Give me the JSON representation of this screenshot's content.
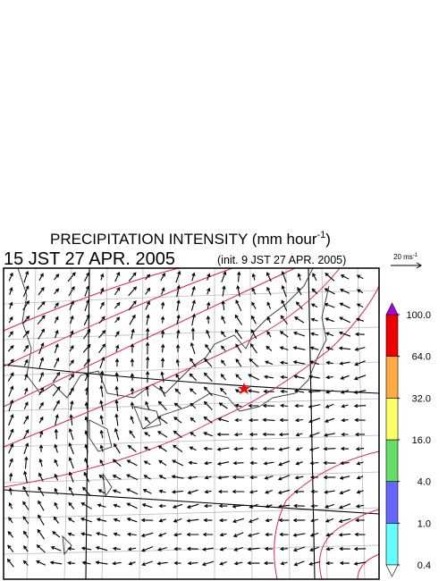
{
  "header": {
    "title": "PRECIPITATION INTENSITY (mm hour",
    "title_sup": "-1",
    "title_end": ")",
    "valid_time": "15 JST 27 APR. 2005",
    "init_time": "(init. 9 JST 27 APR. 2005)"
  },
  "vector_key": {
    "label": "20 ms",
    "sup": "-1"
  },
  "colorbar": {
    "levels": [
      0.4,
      {
        "value": 1,
        "label": "1.0"
      },
      {
        "value": 4,
        "label": "4.0"
      },
      {
        "value": 16,
        "label": "16.0"
      },
      {
        "value": 32,
        "label": "32.0"
      },
      {
        "value": 64,
        "label": "64.0"
      },
      {
        "value": 100,
        "label": "100.0"
      }
    ],
    "colors": [
      "#66ffff",
      "#6666ff",
      "#66dd66",
      "#ffff66",
      "#ffaa44",
      "#ee0000"
    ],
    "under_color": "#ffffff",
    "over_color": "#aa00dd"
  }
}
